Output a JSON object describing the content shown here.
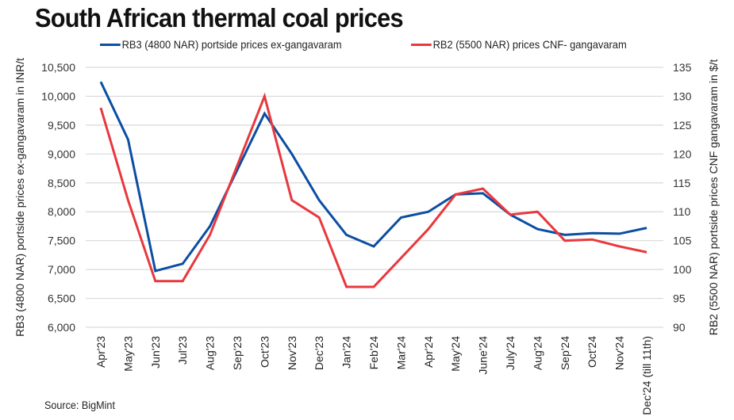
{
  "chart_data": {
    "type": "line",
    "title": "South African thermal coal prices",
    "categories": [
      "Apr'23",
      "May'23",
      "Jun'23",
      "Jul'23",
      "Aug'23",
      "Sep'23",
      "Oct'23",
      "Nov'23",
      "Dec'23",
      "Jan'24",
      "Feb'24",
      "Mar'24",
      "Apr'24",
      "May'24",
      "June'24",
      "July'24",
      "Aug'24",
      "Sep'24",
      "Oct'24",
      "Nov'24",
      "Dec'24 (till 11th)"
    ],
    "series": [
      {
        "name": "RB3 (4800 NAR) portside prices ex-gangavaram",
        "axis": "left",
        "color": "#0B4EA2",
        "values": [
          10250,
          9250,
          6975,
          7100,
          7750,
          null,
          9700,
          9000,
          8200,
          7600,
          7400,
          7900,
          8000,
          8300,
          8320,
          7950,
          7700,
          7600,
          7630,
          7620,
          7720
        ]
      },
      {
        "name": "RB2 (5500 NAR) prices CNF- gangavaram",
        "axis": "right",
        "color": "#E8383D",
        "values": [
          128,
          112,
          98,
          98,
          106,
          null,
          130,
          112,
          109,
          97,
          97,
          102,
          107,
          113,
          114,
          109.5,
          110,
          105,
          105.2,
          104,
          103
        ]
      }
    ],
    "xlabel": "",
    "ylabel": "RB3 (4800 NAR) portside prices ex-gangavaram in INR/t",
    "ylabel_right": "RB2 (5500 NAR) portside prices CNF gangavaram in $/t",
    "ylim": [
      6000,
      10500
    ],
    "ylim_right": [
      90,
      135
    ],
    "yticks": [
      "6,000",
      "6,500",
      "7,000",
      "7,500",
      "8,000",
      "8,500",
      "9,000",
      "9,500",
      "10,000",
      "10,500"
    ],
    "yticks_right": [
      "90",
      "95",
      "100",
      "105",
      "110",
      "115",
      "120",
      "125",
      "130",
      "135"
    ],
    "grid": true,
    "legend_position": "top"
  },
  "source": "Source: BigMint"
}
